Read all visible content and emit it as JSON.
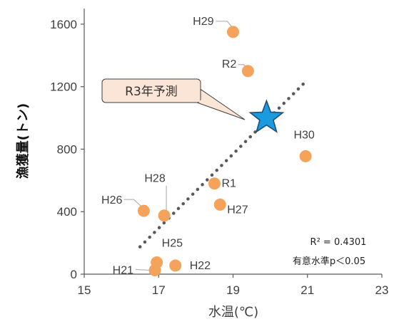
{
  "chart_data": {
    "type": "scatter",
    "xlabel": "水温(℃)",
    "ylabel": "漁獲量(トン)",
    "xlim": [
      15,
      23
    ],
    "ylim": [
      0,
      1700
    ],
    "xticks": [
      15,
      17,
      19,
      21,
      23
    ],
    "yticks": [
      0,
      400,
      800,
      1200,
      1600
    ],
    "grid": false,
    "point_color": "#f5a25a",
    "trend_color": "#595959",
    "points": [
      {
        "label": "H29",
        "x": 19.0,
        "y": 1550
      },
      {
        "label": "R2",
        "x": 19.4,
        "y": 1300
      },
      {
        "label": "H30",
        "x": 20.95,
        "y": 755
      },
      {
        "label": "R1",
        "x": 18.5,
        "y": 580
      },
      {
        "label": "H27",
        "x": 18.65,
        "y": 445
      },
      {
        "label": "H28",
        "x": 17.15,
        "y": 375
      },
      {
        "label": "H26",
        "x": 16.6,
        "y": 405
      },
      {
        "label": "H25",
        "x": 16.95,
        "y": 75
      },
      {
        "label": "H22",
        "x": 17.45,
        "y": 55
      },
      {
        "label": "H21",
        "x": 16.9,
        "y": 25
      }
    ],
    "trendline": {
      "x": [
        16.5,
        20.9
      ],
      "y": [
        175,
        1220
      ]
    },
    "forecast": {
      "label": "R3年予測",
      "x": 19.9,
      "y": 1000,
      "color": "#1a9be0"
    },
    "stats": {
      "r2": "R² = 0.4301",
      "significance": "有意水準p＜0.05"
    }
  }
}
